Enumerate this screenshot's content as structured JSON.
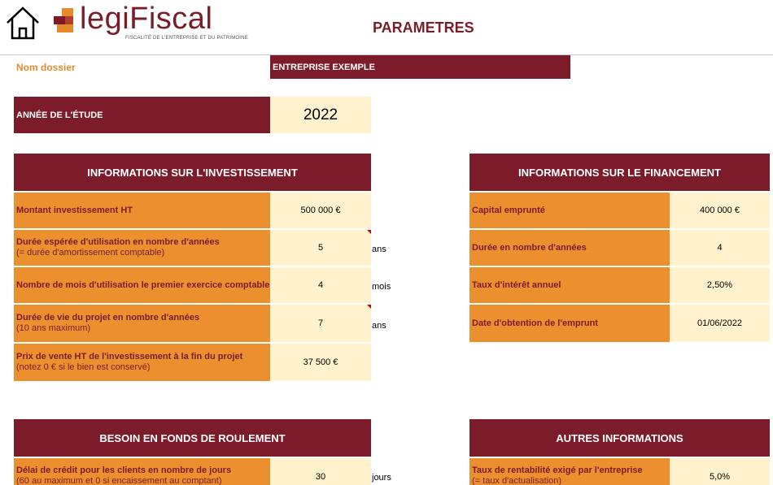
{
  "header": {
    "logo_text": "legiFiscal",
    "logo_tagline": "FISCALITÉ DE L'ENTREPRISE ET DU PATRIMOINE",
    "page_title": "PARAMETRES"
  },
  "dossier": {
    "label": "Nom dossier",
    "value": "ENTREPRISE EXEMPLE"
  },
  "annee": {
    "label": "ANNÉE DE L'ÉTUDE",
    "value": "2022"
  },
  "investissement": {
    "title": "INFORMATIONS SUR L'INVESTISSEMENT",
    "rows": [
      {
        "label": "Montant investissement HT",
        "sub": "",
        "value": "500 000 €",
        "unit": ""
      },
      {
        "label": "Durée espérée d'utilisation en nombre d'années",
        "sub": "(= durée d'amortissement comptable)",
        "value": "5",
        "unit": "ans"
      },
      {
        "label": "Nombre de mois d'utilisation le premier exercice comptable",
        "sub": "",
        "value": "4",
        "unit": "mois"
      },
      {
        "label": "Durée de vie du projet en nombre d'années",
        "sub": "(10 ans maximum)",
        "value": "7",
        "unit": "ans"
      },
      {
        "label": "Prix de vente HT de l'investissement à la fin du projet",
        "sub": "(notez 0 € si le bien est conservé)",
        "value": "37 500 €",
        "unit": ""
      }
    ]
  },
  "financement": {
    "title": "INFORMATIONS SUR LE FINANCEMENT",
    "rows": [
      {
        "label": "Capital emprunté",
        "value": "400 000 €"
      },
      {
        "label": "Durée en nombre d'années",
        "value": "4"
      },
      {
        "label": "Taux d'intérêt annuel",
        "value": "2,50%"
      },
      {
        "label": "Date d'obtention de l'emprunt",
        "value": "01/06/2022"
      }
    ]
  },
  "bfr": {
    "title": "BESOIN EN FONDS DE ROULEMENT",
    "rows": [
      {
        "label": "Délai de crédit pour les clients en nombre de jours",
        "sub": "(60 au maximum et 0 si encaissement au comptant)",
        "value": "30",
        "unit": "jours"
      }
    ]
  },
  "autres": {
    "title": "AUTRES INFORMATIONS",
    "rows": [
      {
        "label": "Taux de rentabilité exigé par l'entreprise",
        "sub": "(= taux d'actualisation)",
        "value": "5,0%"
      }
    ]
  },
  "colors": {
    "maroon": "#7c1c2a",
    "orange": "#ec8f2f",
    "cream": "#fff2cc"
  }
}
